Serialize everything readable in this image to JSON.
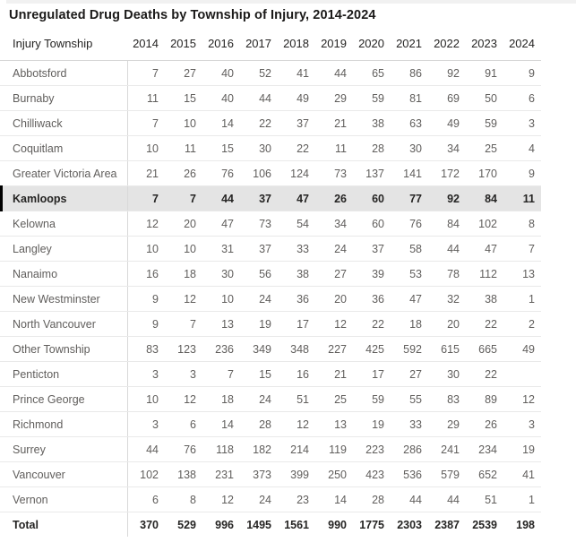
{
  "title": "Unregulated Drug Deaths by Township of Injury, 2014-2024",
  "colors": {
    "highlight_row_bg": "#e4e4e4",
    "selection_bar": "#000000",
    "header_text": "#252423",
    "body_text": "#605e5c",
    "grid_line": "#e9e9e9"
  },
  "chart_data": {
    "type": "table",
    "title": "Unregulated Drug Deaths by Township of Injury, 2014-2024",
    "row_header": "Injury Township",
    "columns": [
      "2014",
      "2015",
      "2016",
      "2017",
      "2018",
      "2019",
      "2020",
      "2021",
      "2022",
      "2023",
      "2024"
    ],
    "rows": [
      {
        "label": "Abbotsford",
        "highlighted": false,
        "values": [
          7,
          27,
          40,
          52,
          41,
          44,
          65,
          86,
          92,
          91,
          9
        ]
      },
      {
        "label": "Burnaby",
        "highlighted": false,
        "values": [
          11,
          15,
          40,
          44,
          49,
          29,
          59,
          81,
          69,
          50,
          6
        ]
      },
      {
        "label": "Chilliwack",
        "highlighted": false,
        "values": [
          7,
          10,
          14,
          22,
          37,
          21,
          38,
          63,
          49,
          59,
          3
        ]
      },
      {
        "label": "Coquitlam",
        "highlighted": false,
        "values": [
          10,
          11,
          15,
          30,
          22,
          11,
          28,
          30,
          34,
          25,
          4
        ]
      },
      {
        "label": "Greater Victoria Area",
        "highlighted": false,
        "values": [
          21,
          26,
          76,
          106,
          124,
          73,
          137,
          141,
          172,
          170,
          9
        ]
      },
      {
        "label": "Kamloops",
        "highlighted": true,
        "values": [
          7,
          7,
          44,
          37,
          47,
          26,
          60,
          77,
          92,
          84,
          11
        ]
      },
      {
        "label": "Kelowna",
        "highlighted": false,
        "values": [
          12,
          20,
          47,
          73,
          54,
          34,
          60,
          76,
          84,
          102,
          8
        ]
      },
      {
        "label": "Langley",
        "highlighted": false,
        "values": [
          10,
          10,
          31,
          37,
          33,
          24,
          37,
          58,
          44,
          47,
          7
        ]
      },
      {
        "label": "Nanaimo",
        "highlighted": false,
        "values": [
          16,
          18,
          30,
          56,
          38,
          27,
          39,
          53,
          78,
          112,
          13
        ]
      },
      {
        "label": "New Westminster",
        "highlighted": false,
        "values": [
          9,
          12,
          10,
          24,
          36,
          20,
          36,
          47,
          32,
          38,
          1
        ]
      },
      {
        "label": "North Vancouver",
        "highlighted": false,
        "values": [
          9,
          7,
          13,
          19,
          17,
          12,
          22,
          18,
          20,
          22,
          2
        ]
      },
      {
        "label": "Other Township",
        "highlighted": false,
        "values": [
          83,
          123,
          236,
          349,
          348,
          227,
          425,
          592,
          615,
          665,
          49
        ]
      },
      {
        "label": "Penticton",
        "highlighted": false,
        "values": [
          3,
          3,
          7,
          15,
          16,
          21,
          17,
          27,
          30,
          22,
          null
        ]
      },
      {
        "label": "Prince George",
        "highlighted": false,
        "values": [
          10,
          12,
          18,
          24,
          51,
          25,
          59,
          55,
          83,
          89,
          12
        ]
      },
      {
        "label": "Richmond",
        "highlighted": false,
        "values": [
          3,
          6,
          14,
          28,
          12,
          13,
          19,
          33,
          29,
          26,
          3
        ]
      },
      {
        "label": "Surrey",
        "highlighted": false,
        "values": [
          44,
          76,
          118,
          182,
          214,
          119,
          223,
          286,
          241,
          234,
          19
        ]
      },
      {
        "label": "Vancouver",
        "highlighted": false,
        "values": [
          102,
          138,
          231,
          373,
          399,
          250,
          423,
          536,
          579,
          652,
          41
        ]
      },
      {
        "label": "Vernon",
        "highlighted": false,
        "values": [
          6,
          8,
          12,
          24,
          23,
          14,
          28,
          44,
          44,
          51,
          1
        ]
      }
    ],
    "total": {
      "label": "Total",
      "values": [
        370,
        529,
        996,
        1495,
        1561,
        990,
        1775,
        2303,
        2387,
        2539,
        198
      ]
    },
    "layout_hints": {
      "highlighted_row": "Kamloops",
      "empty_cells": [
        {
          "row": "Penticton",
          "column": "2024"
        }
      ],
      "value_alignment": "right",
      "grid": "horizontal-lines"
    }
  }
}
